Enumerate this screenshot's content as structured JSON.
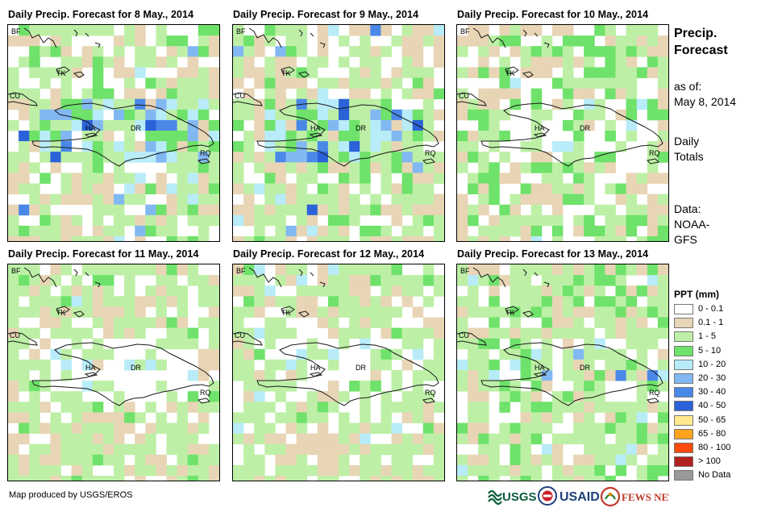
{
  "panels": [
    {
      "title": "Daily Precip. Forecast for 8 May., 2014"
    },
    {
      "title": "Daily Precip. Forecast for 9 May., 2014"
    },
    {
      "title": "Daily Precip. Forecast for 10 May., 2014"
    },
    {
      "title": "Daily Precip. Forecast for 11 May., 2014"
    },
    {
      "title": "Daily Precip. Forecast for 12 May., 2014"
    },
    {
      "title": "Daily Precip. Forecast for 13 May., 2014"
    }
  ],
  "map_labels": {
    "bf": "BF",
    "tk": "TK",
    "cu": "CU",
    "ha": "HA",
    "dr": "DR",
    "rq": "RQ"
  },
  "sidebar": {
    "title_line1": "Precip.",
    "title_line2": "Forecast",
    "asof_label": "as of:",
    "asof_date": "May 8, 2014",
    "totals_line1": "Daily",
    "totals_line2": "Totals",
    "data_label": "Data:",
    "data_line1": "NOAA-",
    "data_line2": "GFS"
  },
  "legend": {
    "title": "PPT (mm)",
    "items": [
      {
        "label": "0 - 0.1",
        "color": "#ffffff"
      },
      {
        "label": "0.1 - 1",
        "color": "#e8d5b5"
      },
      {
        "label": "1 - 5",
        "color": "#bdf0a6"
      },
      {
        "label": "5 - 10",
        "color": "#6ee26a"
      },
      {
        "label": "10 - 20",
        "color": "#b8ecf8"
      },
      {
        "label": "20 - 30",
        "color": "#82b8f2"
      },
      {
        "label": "30 - 40",
        "color": "#4a88e8"
      },
      {
        "label": "40 - 50",
        "color": "#2a62d8"
      },
      {
        "label": "50 - 65",
        "color": "#ffe98c"
      },
      {
        "label": "65 - 80",
        "color": "#ffa21e"
      },
      {
        "label": "80 - 100",
        "color": "#ff4a10"
      },
      {
        "label": "> 100",
        "color": "#b32020"
      },
      {
        "label": "No Data",
        "color": "#999999"
      }
    ]
  },
  "footer": {
    "credit": "Map produced by USGS/EROS",
    "logo_usgs": "USGS",
    "logo_usaid": "USAID",
    "logo_fews": "FEWS NET"
  }
}
